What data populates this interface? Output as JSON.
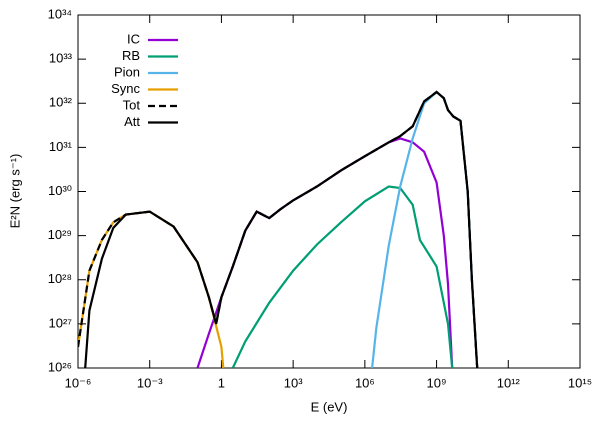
{
  "chart_data": {
    "type": "line",
    "xlabel": "E (eV)",
    "ylabel": "E²N (erg s⁻¹)",
    "xscale": "log",
    "yscale": "log",
    "xlim": [
      1e-06,
      1000000000000000.0
    ],
    "ylim": [
      1e+26,
      1e+34
    ],
    "xticks": [
      {
        "value": 1e-06,
        "label": "10⁻⁶"
      },
      {
        "value": 0.001,
        "label": "10⁻³"
      },
      1,
      {
        "value": 1000.0,
        "label": "10³"
      },
      {
        "value": 1000000.0,
        "label": "10⁶"
      },
      {
        "value": 1000000000.0,
        "label": "10⁹"
      },
      {
        "value": 1000000000000.0,
        "label": "10¹²"
      },
      {
        "value": 1000000000000000.0,
        "label": "10¹⁵"
      }
    ],
    "yticks": [
      {
        "value": 1e+26,
        "label": "10²⁶"
      },
      {
        "value": 1e+27,
        "label": "10²⁷"
      },
      {
        "value": 1e+28,
        "label": "10²⁸"
      },
      {
        "value": 1e+29,
        "label": "10²⁹"
      },
      {
        "value": 1e+30,
        "label": "10³⁰"
      },
      {
        "value": 1e+31,
        "label": "10³¹"
      },
      {
        "value": 1e+32,
        "label": "10³²"
      },
      {
        "value": 1e+33,
        "label": "10³³"
      },
      {
        "value": 1e+34,
        "label": "10³⁴"
      }
    ],
    "legend": "top-left",
    "series": [
      {
        "name": "IC",
        "color": "#9400d3",
        "dashed": false,
        "x": [
          0.1,
          0.3,
          1,
          3,
          10,
          30,
          100,
          300,
          1000.0,
          10000.0,
          100000.0,
          1000000.0,
          10000000.0,
          30000000.0,
          100000000.0,
          300000000.0,
          1000000000.0,
          2000000000.0,
          3000000000.0,
          4500000000.0
        ],
        "values": [
          1e+26,
          6e+26,
          4e+27,
          2e+28,
          1.3e+29,
          3.5e+29,
          2.5e+29,
          4e+29,
          6.3e+29,
          1.3e+30,
          3e+30,
          6.3e+30,
          1.3e+31,
          1.6e+31,
          1.3e+31,
          8e+30,
          1.6e+30,
          1e+29,
          8e+27,
          1e+26
        ]
      },
      {
        "name": "RB",
        "color": "#009e73",
        "dashed": false,
        "x": [
          3,
          10,
          100,
          1000.0,
          10000.0,
          100000.0,
          1000000.0,
          10000000.0,
          30000000.0,
          100000000.0,
          200000000.0,
          1000000000.0,
          3000000000.0,
          4500000000.0
        ],
        "values": [
          1e+26,
          4e+26,
          3e+27,
          1.6e+28,
          6.3e+28,
          2e+29,
          6e+29,
          1.3e+30,
          1.2e+30,
          5e+29,
          8e+28,
          2e+28,
          1e+27,
          1e+26
        ]
      },
      {
        "name": "Pion",
        "color": "#56b4e9",
        "dashed": false,
        "x": [
          2000000.0,
          3000000.0,
          10000000.0,
          30000000.0,
          100000000.0,
          300000000.0,
          1000000000.0,
          2000000000.0,
          3000000000.0,
          5000000000.0,
          10000000000.0,
          20000000000.0,
          30000000000.0,
          50000000000.0
        ],
        "values": [
          1e+26,
          8e+26,
          6e+28,
          1.3e+30,
          1.6e+31,
          1e+32,
          1.8e+32,
          1.3e+32,
          7e+31,
          5e+31,
          4e+31,
          1e+30,
          1e+28,
          1e+26
        ]
      },
      {
        "name": "Sync",
        "color": "#e69f00",
        "dashed": false,
        "x": [
          1e-06,
          3e-06,
          1e-05,
          3e-05,
          0.0001,
          0.001,
          0.01,
          0.1,
          0.3,
          1,
          1.2
        ],
        "values": [
          3e+26,
          1.6e+28,
          8e+28,
          2e+29,
          3e+29,
          3.5e+29,
          1.6e+29,
          2.5e+28,
          4e+27,
          3e+26,
          1e+26
        ]
      },
      {
        "name": "Tot",
        "color": "#000000",
        "dashed": true,
        "x": [
          1e-06,
          3e-06,
          1e-05,
          3e-05,
          0.0001,
          0.001,
          0.01,
          0.1,
          0.3,
          0.6,
          1,
          3,
          10,
          30,
          100,
          300,
          1000.0,
          10000.0,
          100000.0,
          1000000.0,
          10000000.0,
          30000000.0,
          100000000.0,
          300000000.0,
          1000000000.0,
          2000000000.0,
          3000000000.0,
          5000000000.0,
          10000000000.0,
          20000000000.0,
          30000000000.0,
          50000000000.0
        ],
        "values": [
          3e+26,
          1.6e+28,
          8e+28,
          2e+29,
          3e+29,
          3.5e+29,
          1.6e+29,
          2.5e+28,
          4e+27,
          1e+27,
          4e+27,
          2e+28,
          1.3e+29,
          3.5e+29,
          2.5e+29,
          4e+29,
          6.3e+29,
          1.3e+30,
          3e+30,
          6.3e+30,
          1.3e+31,
          1.8e+31,
          3e+31,
          1.1e+32,
          1.8e+32,
          1.3e+32,
          7e+31,
          5e+31,
          4e+31,
          1e+30,
          1e+28,
          1e+26
        ]
      },
      {
        "name": "Att",
        "color": "#000000",
        "dashed": false,
        "x": [
          2e-06,
          3e-06,
          1e-05,
          3e-05,
          0.0001,
          0.001,
          0.01,
          0.1,
          0.3,
          0.6,
          1,
          3,
          10,
          30,
          100,
          300,
          1000.0,
          10000.0,
          100000.0,
          1000000.0,
          10000000.0,
          30000000.0,
          100000000.0,
          300000000.0,
          1000000000.0,
          2000000000.0,
          3000000000.0,
          5000000000.0,
          10000000000.0,
          20000000000.0,
          30000000000.0,
          50000000000.0
        ],
        "values": [
          1e+26,
          2e+27,
          3e+28,
          1.5e+29,
          3e+29,
          3.5e+29,
          1.6e+29,
          2.5e+28,
          4e+27,
          1e+27,
          4e+27,
          2e+28,
          1.3e+29,
          3.5e+29,
          2.5e+29,
          4e+29,
          6.3e+29,
          1.3e+30,
          3e+30,
          6.3e+30,
          1.3e+31,
          1.8e+31,
          3e+31,
          1.1e+32,
          1.8e+32,
          1.3e+32,
          7e+31,
          5e+31,
          4e+31,
          1e+30,
          1e+28,
          1e+26
        ]
      }
    ]
  }
}
